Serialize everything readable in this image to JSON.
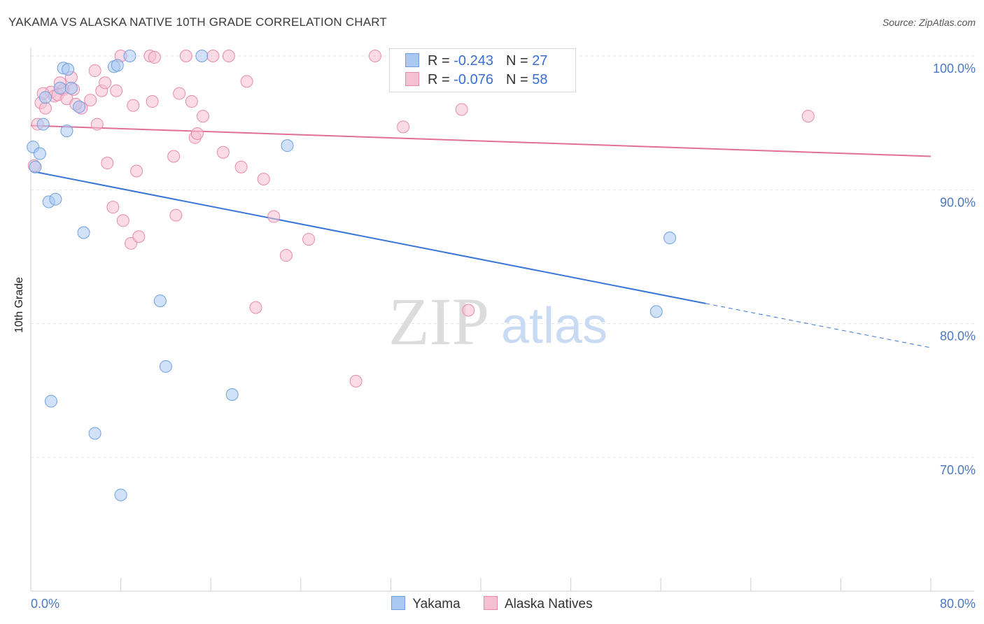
{
  "title": "YAKAMA VS ALASKA NATIVE 10TH GRADE CORRELATION CHART",
  "source": "Source: ZipAtlas.com",
  "watermark": {
    "zip": "ZIP",
    "atlas": "atlas"
  },
  "legend": {
    "rows": [
      {
        "r_label": "R = ",
        "r_value": "-0.243",
        "n_label": "N = ",
        "n_value": "27",
        "color": "#a9c8f2",
        "border": "#6f9fe0"
      },
      {
        "r_label": "R = ",
        "r_value": "-0.076",
        "n_label": "N = ",
        "n_value": "58",
        "color": "#f7c0d2",
        "border": "#e88aab"
      }
    ]
  },
  "chart_data": {
    "type": "scatter",
    "title": "YAKAMA VS ALASKA NATIVE 10TH GRADE CORRELATION CHART",
    "xlabel": "",
    "ylabel": "10th Grade",
    "xlim": [
      0,
      80
    ],
    "ylim": [
      60,
      101.5
    ],
    "x_tick_labels": [
      "0.0%",
      "80.0%"
    ],
    "y_ticks": [
      70,
      80,
      90,
      100
    ],
    "y_tick_labels": [
      "70.0%",
      "80.0%",
      "90.0%",
      "100.0%"
    ],
    "grid": true,
    "legend_position": "top-center",
    "series": [
      {
        "name": "Yakama",
        "color": "#a9c8f2",
        "stroke": "#6f9fe0",
        "line_color": "#3a76d6",
        "trend": {
          "x0": 0,
          "y0": 91.4,
          "x1": 60,
          "y1": 81.5,
          "dashed_to_x": 80,
          "dashed_to_y": 78.2
        },
        "points": [
          [
            0.2,
            93.2
          ],
          [
            0.4,
            91.7
          ],
          [
            0.8,
            92.7
          ],
          [
            1.1,
            94.9
          ],
          [
            1.3,
            96.9
          ],
          [
            1.6,
            89.1
          ],
          [
            1.8,
            74.2
          ],
          [
            2.2,
            89.3
          ],
          [
            2.6,
            97.6
          ],
          [
            2.9,
            99.1
          ],
          [
            3.2,
            94.4
          ],
          [
            3.3,
            99.0
          ],
          [
            3.6,
            97.6
          ],
          [
            4.3,
            96.2
          ],
          [
            4.7,
            86.8
          ],
          [
            5.7,
            71.8
          ],
          [
            7.4,
            99.2
          ],
          [
            7.7,
            99.3
          ],
          [
            8.0,
            67.2
          ],
          [
            8.8,
            100.0
          ],
          [
            11.5,
            81.7
          ],
          [
            12.0,
            76.8
          ],
          [
            15.2,
            100.0
          ],
          [
            17.9,
            74.7
          ],
          [
            22.8,
            93.3
          ],
          [
            56.8,
            86.4
          ],
          [
            55.6,
            80.9
          ]
        ]
      },
      {
        "name": "Alaska Natives",
        "color": "#f7c0d2",
        "stroke": "#e88aab",
        "line_color": "#e07095",
        "trend": {
          "x0": 0,
          "y0": 94.8,
          "x1": 80,
          "y1": 92.5
        },
        "points": [
          [
            0.3,
            91.8
          ],
          [
            0.6,
            94.9
          ],
          [
            0.9,
            96.5
          ],
          [
            1.3,
            96.1
          ],
          [
            1.8,
            97.3
          ],
          [
            2.1,
            97.0
          ],
          [
            2.4,
            97.1
          ],
          [
            2.9,
            97.5
          ],
          [
            3.2,
            96.8
          ],
          [
            3.6,
            98.4
          ],
          [
            3.8,
            97.5
          ],
          [
            4.5,
            96.1
          ],
          [
            5.3,
            96.7
          ],
          [
            5.7,
            98.9
          ],
          [
            5.9,
            94.9
          ],
          [
            6.3,
            97.4
          ],
          [
            6.6,
            98.0
          ],
          [
            6.8,
            92.0
          ],
          [
            7.3,
            88.7
          ],
          [
            7.6,
            97.4
          ],
          [
            8.0,
            100.0
          ],
          [
            8.2,
            87.7
          ],
          [
            8.9,
            86.0
          ],
          [
            9.1,
            96.3
          ],
          [
            9.4,
            91.4
          ],
          [
            9.6,
            86.5
          ],
          [
            10.6,
            100.0
          ],
          [
            10.8,
            96.6
          ],
          [
            12.7,
            92.5
          ],
          [
            12.9,
            88.1
          ],
          [
            13.2,
            97.2
          ],
          [
            13.8,
            100.0
          ],
          [
            14.3,
            96.6
          ],
          [
            14.6,
            93.9
          ],
          [
            14.8,
            94.2
          ],
          [
            15.3,
            95.5
          ],
          [
            16.2,
            100.0
          ],
          [
            17.1,
            92.8
          ],
          [
            17.6,
            100.0
          ],
          [
            18.7,
            91.7
          ],
          [
            19.2,
            98.1
          ],
          [
            20.0,
            81.2
          ],
          [
            20.7,
            90.8
          ],
          [
            21.6,
            88.0
          ],
          [
            22.7,
            85.1
          ],
          [
            24.7,
            86.3
          ],
          [
            28.9,
            75.7
          ],
          [
            30.6,
            100.0
          ],
          [
            33.1,
            94.7
          ],
          [
            38.3,
            96.0
          ],
          [
            38.9,
            81.0
          ],
          [
            41.5,
            100.0
          ],
          [
            44.8,
            100.0
          ],
          [
            69.1,
            95.5
          ],
          [
            1.1,
            97.2
          ],
          [
            2.6,
            98.0
          ],
          [
            4.0,
            96.4
          ],
          [
            11.0,
            99.9
          ]
        ]
      }
    ]
  }
}
